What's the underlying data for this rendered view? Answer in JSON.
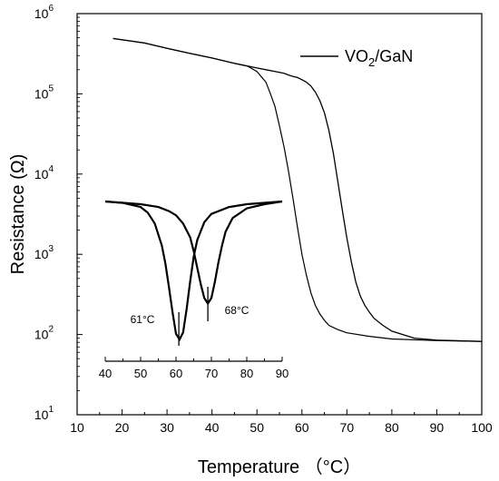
{
  "chart_data": [
    {
      "type": "line",
      "xlabel": "Temperature （°C）",
      "ylabel": "Resistance (Ω)",
      "xlim": [
        10,
        100
      ],
      "ylim": [
        10,
        1000000
      ],
      "y_scale": "log",
      "grid": false,
      "legend_placement": "top-right",
      "x_ticks": [
        "10",
        "20",
        "30",
        "40",
        "50",
        "60",
        "70",
        "80",
        "90",
        "100"
      ],
      "y_ticks": [
        {
          "base": "10",
          "exp": "1"
        },
        {
          "base": "10",
          "exp": "2"
        },
        {
          "base": "10",
          "exp": "3"
        },
        {
          "base": "10",
          "exp": "4"
        },
        {
          "base": "10",
          "exp": "5"
        },
        {
          "base": "10",
          "exp": "6"
        }
      ],
      "legend": {
        "main": "VO",
        "sub": "2",
        "rest": "/GaN"
      },
      "series": [
        {
          "name": "VO2/GaN",
          "branch": "heating",
          "x": [
            18,
            25,
            30,
            35,
            40,
            45,
            50,
            52,
            54,
            55,
            56,
            57,
            58,
            59,
            60,
            61,
            62,
            63,
            64,
            65,
            66,
            67,
            68,
            69,
            70,
            71,
            72,
            73,
            74,
            75,
            76,
            78,
            80,
            85,
            90,
            100
          ],
          "y": [
            490000,
            430000,
            370000,
            320000,
            280000,
            240000,
            210000,
            200000,
            190000,
            185000,
            180000,
            172000,
            165000,
            160000,
            150000,
            140000,
            125000,
            105000,
            82000,
            58000,
            35000,
            18000,
            8000,
            3500,
            1600,
            800,
            450,
            300,
            230,
            190,
            160,
            130,
            110,
            90,
            85,
            82
          ]
        },
        {
          "name": "VO2/GaN",
          "branch": "cooling",
          "x": [
            18,
            25,
            30,
            35,
            40,
            45,
            48,
            50,
            52,
            53,
            54,
            55,
            56,
            57,
            58,
            59,
            60,
            61,
            62,
            63,
            64,
            65,
            66,
            68,
            70,
            75,
            80,
            90,
            100
          ],
          "y": [
            490000,
            430000,
            370000,
            320000,
            280000,
            240000,
            220000,
            190000,
            140000,
            100000,
            70000,
            40000,
            22000,
            11000,
            5000,
            2200,
            1000,
            550,
            330,
            230,
            180,
            150,
            130,
            115,
            105,
            95,
            88,
            84,
            82
          ]
        }
      ]
    },
    {
      "type": "line",
      "role": "inset",
      "xlim": [
        40,
        90
      ],
      "x_ticks": [
        "40",
        "50",
        "60",
        "70",
        "80",
        "90"
      ],
      "annotations": [
        "61°C",
        "68°C"
      ],
      "series": [
        {
          "name": "",
          "x": [
            40,
            45,
            50,
            52,
            54,
            56,
            57,
            58,
            59,
            60,
            61,
            62,
            63,
            64,
            65,
            66,
            68,
            70,
            75,
            80,
            90
          ],
          "y": [
            1,
            0.99,
            0.96,
            0.92,
            0.84,
            0.68,
            0.55,
            0.38,
            0.2,
            0.04,
            0.0,
            0.05,
            0.22,
            0.42,
            0.6,
            0.72,
            0.85,
            0.91,
            0.96,
            0.98,
            1.0
          ]
        },
        {
          "name": "",
          "x": [
            40,
            45,
            50,
            55,
            58,
            60,
            62,
            64,
            65,
            66,
            67,
            68,
            69,
            70,
            71,
            72,
            73,
            74,
            76,
            80,
            85,
            90
          ],
          "y": [
            1,
            0.99,
            0.98,
            0.96,
            0.93,
            0.9,
            0.84,
            0.74,
            0.64,
            0.52,
            0.4,
            0.3,
            0.26,
            0.3,
            0.42,
            0.56,
            0.68,
            0.78,
            0.88,
            0.95,
            0.98,
            1.0
          ]
        }
      ]
    }
  ]
}
